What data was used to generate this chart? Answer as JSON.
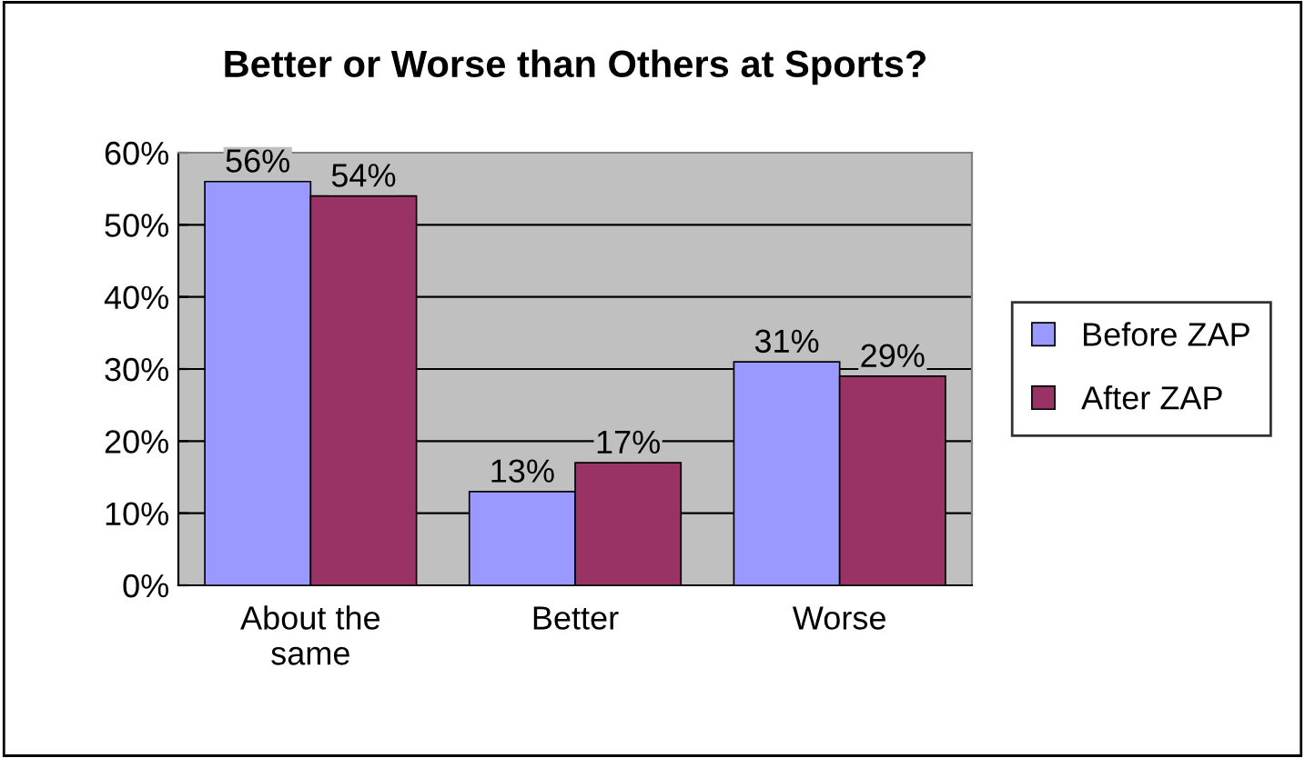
{
  "chart_data": {
    "type": "bar",
    "title": "Better or Worse than Others at Sports?",
    "categories": [
      "About the\nsame",
      "Better",
      "Worse"
    ],
    "series": [
      {
        "name": "Before ZAP",
        "color": "#9999ff",
        "values": [
          56,
          13,
          31
        ],
        "value_labels": [
          "56%",
          "13%",
          "31%"
        ]
      },
      {
        "name": "After ZAP",
        "color": "#993366",
        "values": [
          54,
          17,
          29
        ],
        "value_labels": [
          "54%",
          "17%",
          "29%"
        ]
      }
    ],
    "ylim": [
      0,
      60
    ],
    "yticks": [
      {
        "value": 0,
        "label": "0%"
      },
      {
        "value": 10,
        "label": "10%"
      },
      {
        "value": 20,
        "label": "20%"
      },
      {
        "value": 30,
        "label": "30%"
      },
      {
        "value": 40,
        "label": "40%"
      },
      {
        "value": 50,
        "label": "50%"
      },
      {
        "value": 60,
        "label": "60%"
      }
    ],
    "grid": "y",
    "legend": "right"
  }
}
